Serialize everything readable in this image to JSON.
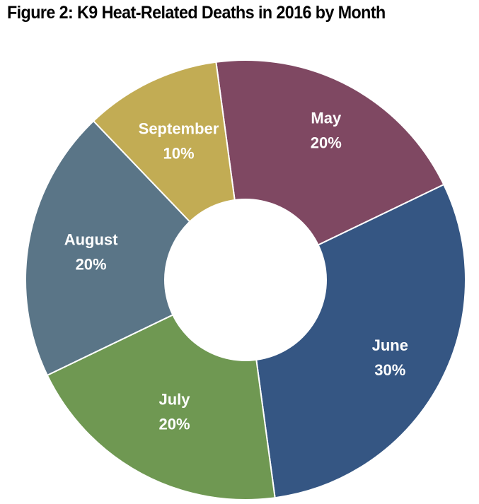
{
  "chart_data": {
    "type": "pie",
    "title": "Figure 2: K9 Heat-Related Deaths in 2016 by Month",
    "donut": true,
    "categories": [
      "May",
      "June",
      "July",
      "August",
      "September"
    ],
    "values": [
      20,
      30,
      20,
      20,
      10
    ],
    "value_labels": [
      "20%",
      "30%",
      "20%",
      "20%",
      "10%"
    ],
    "colors": [
      "#7f4862",
      "#355683",
      "#6f9852",
      "#5a7587",
      "#c2ac54"
    ],
    "legend": "none",
    "labels_inside_slices": true
  }
}
